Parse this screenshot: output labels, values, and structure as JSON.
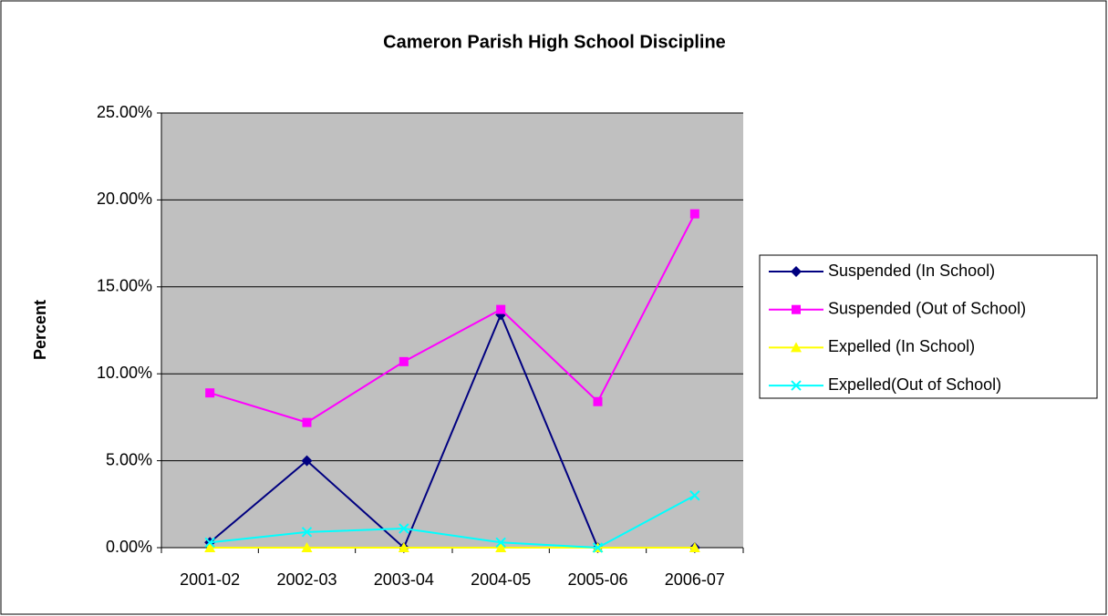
{
  "chart_data": {
    "type": "line",
    "title": "Cameron Parish High School Discipline",
    "y_label": "Percent",
    "categories": [
      "2001-02",
      "2002-03",
      "2003-04",
      "2004-05",
      "2005-06",
      "2006-07"
    ],
    "series": [
      {
        "name": "Suspended (In School)",
        "color": "#000080",
        "marker": "diamond",
        "values": [
          0.3,
          5.0,
          0,
          13.4,
          0,
          0
        ]
      },
      {
        "name": "Suspended (Out of School)",
        "color": "#ff00ff",
        "marker": "square",
        "values": [
          8.9,
          7.2,
          10.7,
          13.7,
          8.4,
          19.2
        ]
      },
      {
        "name": "Expelled (In School)",
        "color": "#ffff00",
        "marker": "triangle",
        "values": [
          0,
          0,
          0,
          0,
          0,
          0
        ]
      },
      {
        "name": "Expelled(Out of School)",
        "color": "#00ffff",
        "marker": "x",
        "values": [
          0.3,
          0.9,
          1.1,
          0.3,
          0,
          3.0
        ]
      }
    ],
    "ylim": [
      0,
      25
    ],
    "yticks": [
      {
        "value": 0,
        "label": "0.00%"
      },
      {
        "value": 5,
        "label": "5.00%"
      },
      {
        "value": 10,
        "label": "10.00%"
      },
      {
        "value": 15,
        "label": "15.00%"
      },
      {
        "value": 20,
        "label": "20.00%"
      },
      {
        "value": 25,
        "label": "25.00%"
      }
    ],
    "grid": true,
    "legend": "right"
  }
}
